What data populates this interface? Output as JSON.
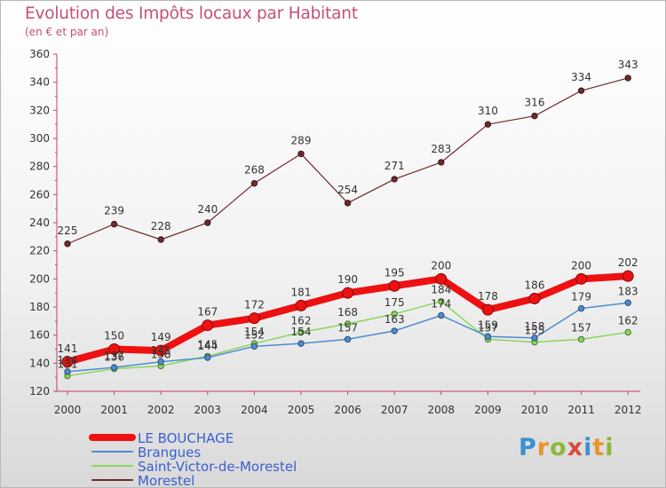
{
  "header": {
    "title": "Evolution des Impôts locaux par Habitant",
    "subtitle": "(en € et par an)"
  },
  "brand": {
    "logo_text": "Proxiti"
  },
  "chart_data": {
    "type": "line",
    "title": "Evolution des Impôts locaux par Habitant",
    "subtitle": "(en € et par an)",
    "xlabel": "",
    "ylabel": "",
    "ylim": [
      120,
      360
    ],
    "ytick_step": 20,
    "grid": false,
    "legend": "bottom-left",
    "categories": [
      "2000",
      "2001",
      "2002",
      "2003",
      "2004",
      "2005",
      "2006",
      "2007",
      "2008",
      "2009",
      "2010",
      "2011",
      "2012"
    ],
    "series": [
      {
        "name": "Morestel",
        "color": "#6e2a2e",
        "values": [
          225,
          239,
          228,
          240,
          268,
          289,
          254,
          271,
          283,
          310,
          316,
          334,
          343
        ],
        "labels": [
          "225",
          "239",
          "228",
          "240",
          "268",
          "289",
          "254",
          "271",
          "283",
          "310",
          "316",
          "334",
          "343"
        ]
      },
      {
        "name": "Saint-Victor-de-Morestel",
        "color": "#8ad65e",
        "values": [
          131,
          136,
          138,
          145,
          154,
          162,
          168,
          175,
          184,
          157,
          155,
          157,
          162
        ],
        "labels": [
          "131",
          "136",
          "138",
          "145",
          "154",
          "162",
          "168",
          "175",
          "184",
          "157",
          "155",
          "157",
          "162"
        ]
      },
      {
        "name": "Brangues",
        "color": "#4f8ccf",
        "values": [
          134,
          137,
          141,
          144,
          152,
          154,
          157,
          163,
          174,
          159,
          158,
          179,
          183
        ],
        "labels": [
          "134",
          "137",
          "141",
          "144",
          "152",
          "154",
          "157",
          "163",
          "174",
          "159",
          "158",
          "179",
          "183"
        ]
      },
      {
        "name": "LE BOUCHAGE",
        "color": "#ee1111",
        "values": [
          141,
          150,
          149,
          167,
          172,
          181,
          190,
          195,
          200,
          178,
          186,
          200,
          202
        ],
        "labels": [
          "141",
          "150",
          "149",
          "167",
          "172",
          "181",
          "190",
          "195",
          "200",
          "178",
          "186",
          "200",
          "202"
        ]
      }
    ],
    "legend_entries": [
      {
        "name": "LE BOUCHAGE",
        "color": "#ee1111"
      },
      {
        "name": "Brangues",
        "color": "#4f8ccf"
      },
      {
        "name": "Saint-Victor-de-Morestel",
        "color": "#8ad65e"
      },
      {
        "name": "Morestel",
        "color": "#6e2a2e"
      }
    ]
  }
}
